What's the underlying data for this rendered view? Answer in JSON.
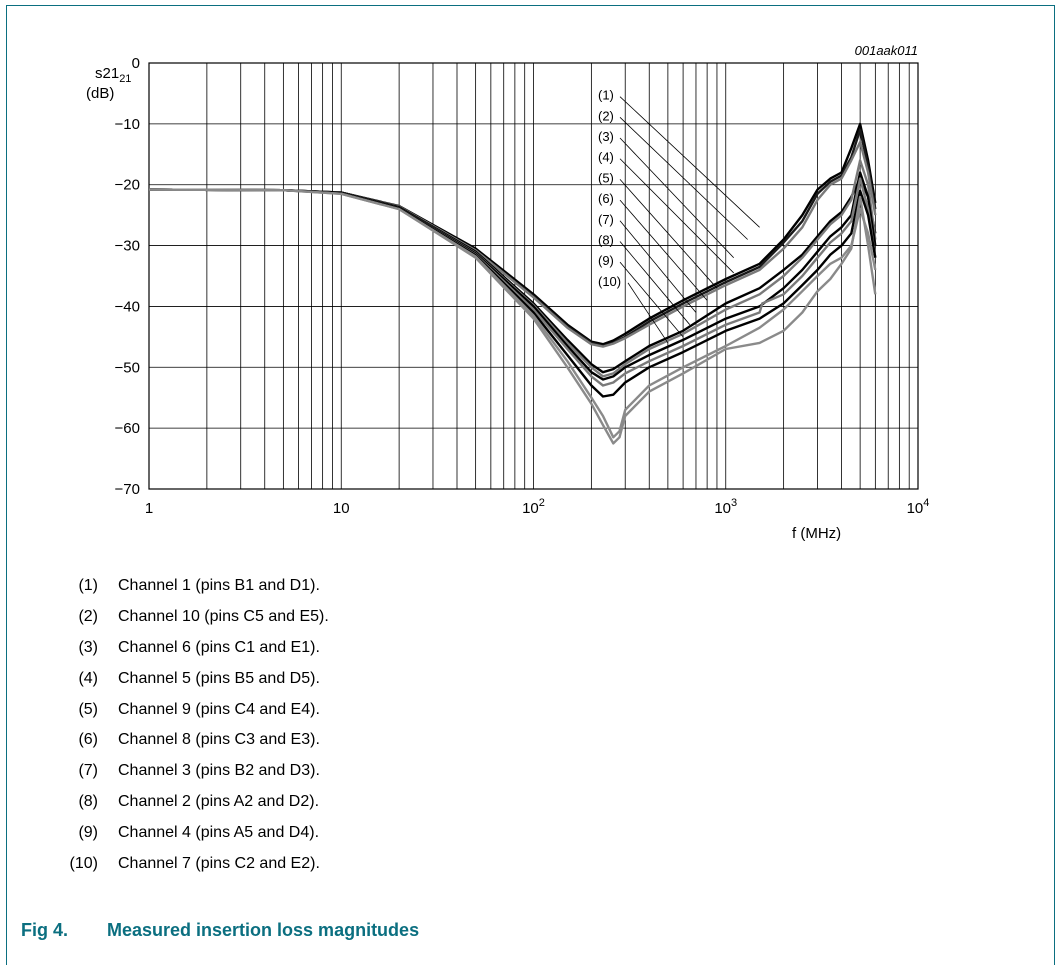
{
  "chart_data": {
    "type": "line",
    "id_label": "001aak011",
    "ylabel": "s21",
    "ylabel_unit": "(dB)",
    "xlabel": "f (MHz)",
    "xscale": "log",
    "xlim": [
      1,
      10000
    ],
    "ylim": [
      -70,
      0
    ],
    "grid": true,
    "x_ticks": [
      {
        "value": 1,
        "base": "1",
        "exp": ""
      },
      {
        "value": 10,
        "base": "10",
        "exp": ""
      },
      {
        "value": 100,
        "base": "10",
        "exp": "2"
      },
      {
        "value": 1000,
        "base": "10",
        "exp": "3"
      },
      {
        "value": 10000,
        "base": "10",
        "exp": "4"
      }
    ],
    "y_ticks": [
      {
        "value": 0,
        "label": "0"
      },
      {
        "value": -10,
        "label": "−10"
      },
      {
        "value": -20,
        "label": "−20"
      },
      {
        "value": -30,
        "label": "−30"
      },
      {
        "value": -40,
        "label": "−40"
      },
      {
        "value": -50,
        "label": "−50"
      },
      {
        "value": -60,
        "label": "−60"
      },
      {
        "value": -70,
        "label": "−70"
      }
    ],
    "series": [
      {
        "name": "(1)",
        "color": "#000000",
        "points": [
          [
            1,
            -20.8
          ],
          [
            5,
            -20.9
          ],
          [
            10,
            -21.3
          ],
          [
            20,
            -23.5
          ],
          [
            50,
            -30.5
          ],
          [
            100,
            -38
          ],
          [
            150,
            -43
          ],
          [
            200,
            -45.8
          ],
          [
            230,
            -46.2
          ],
          [
            260,
            -45.6
          ],
          [
            300,
            -44.5
          ],
          [
            400,
            -42
          ],
          [
            600,
            -39
          ],
          [
            1000,
            -35.5
          ],
          [
            1500,
            -33
          ],
          [
            2000,
            -29
          ],
          [
            2500,
            -25
          ],
          [
            3000,
            -20.8
          ],
          [
            3500,
            -19
          ],
          [
            4000,
            -18
          ],
          [
            4500,
            -14
          ],
          [
            5000,
            -10
          ],
          [
            5500,
            -16
          ],
          [
            6000,
            -23
          ]
        ],
        "label_y": -5.2,
        "target": [
          1500,
          -27
        ]
      },
      {
        "name": "(2)",
        "color": "#1a1a1a",
        "points": [
          [
            1,
            -20.8
          ],
          [
            5,
            -20.9
          ],
          [
            10,
            -21.3
          ],
          [
            20,
            -23.6
          ],
          [
            50,
            -30.8
          ],
          [
            100,
            -38.3
          ],
          [
            150,
            -43.3
          ],
          [
            200,
            -46
          ],
          [
            230,
            -46.5
          ],
          [
            260,
            -46
          ],
          [
            300,
            -45
          ],
          [
            400,
            -42.5
          ],
          [
            600,
            -39.5
          ],
          [
            1000,
            -36
          ],
          [
            1500,
            -33.5
          ],
          [
            2000,
            -29.5
          ],
          [
            2500,
            -26
          ],
          [
            3000,
            -21.5
          ],
          [
            3500,
            -19.5
          ],
          [
            4000,
            -18.5
          ],
          [
            4500,
            -15.5
          ],
          [
            5000,
            -11
          ],
          [
            5500,
            -17
          ],
          [
            6000,
            -24
          ]
        ],
        "label_y": -8.6,
        "target": [
          1300,
          -29
        ]
      },
      {
        "name": "(3)",
        "color": "#7a7a7a",
        "points": [
          [
            1,
            -20.8
          ],
          [
            5,
            -20.9
          ],
          [
            10,
            -21.3
          ],
          [
            20,
            -23.6
          ],
          [
            50,
            -30.8
          ],
          [
            100,
            -38.5
          ],
          [
            150,
            -43.5
          ],
          [
            200,
            -46.2
          ],
          [
            230,
            -46.6
          ],
          [
            260,
            -46.1
          ],
          [
            300,
            -45.2
          ],
          [
            400,
            -43
          ],
          [
            600,
            -40
          ],
          [
            1000,
            -36.5
          ],
          [
            1500,
            -34
          ],
          [
            2000,
            -30.5
          ],
          [
            2500,
            -27
          ],
          [
            3000,
            -22.5
          ],
          [
            3500,
            -20
          ],
          [
            4000,
            -19
          ],
          [
            4500,
            -16
          ],
          [
            5000,
            -13
          ],
          [
            5500,
            -18
          ],
          [
            6000,
            -25
          ]
        ],
        "label_y": -12.0,
        "target": [
          1100,
          -32
        ]
      },
      {
        "name": "(4)",
        "color": "#000000",
        "points": [
          [
            1,
            -20.8
          ],
          [
            5,
            -20.9
          ],
          [
            10,
            -21.3
          ],
          [
            20,
            -23.7
          ],
          [
            50,
            -31
          ],
          [
            100,
            -39.5
          ],
          [
            150,
            -45.5
          ],
          [
            200,
            -49.5
          ],
          [
            230,
            -50.8
          ],
          [
            260,
            -50.3
          ],
          [
            300,
            -49
          ],
          [
            400,
            -46.5
          ],
          [
            600,
            -44
          ],
          [
            1000,
            -39.5
          ],
          [
            1500,
            -37
          ],
          [
            2000,
            -34
          ],
          [
            2500,
            -31.5
          ],
          [
            3000,
            -28.5
          ],
          [
            3500,
            -26
          ],
          [
            4000,
            -24.5
          ],
          [
            4500,
            -22
          ],
          [
            5000,
            -19
          ],
          [
            5500,
            -22
          ],
          [
            6000,
            -28
          ]
        ],
        "label_y": -15.4,
        "target": [
          1100,
          -34.5
        ]
      },
      {
        "name": "(5)",
        "color": "#7a7a7a",
        "points": [
          [
            1,
            -20.8
          ],
          [
            5,
            -20.9
          ],
          [
            10,
            -21.4
          ],
          [
            20,
            -23.8
          ],
          [
            50,
            -31.2
          ],
          [
            100,
            -39.8
          ],
          [
            150,
            -46
          ],
          [
            200,
            -50
          ],
          [
            230,
            -51.5
          ],
          [
            260,
            -51
          ],
          [
            300,
            -49.5
          ],
          [
            400,
            -47
          ],
          [
            600,
            -44.5
          ],
          [
            1000,
            -40.5
          ],
          [
            1500,
            -38
          ],
          [
            2000,
            -35
          ],
          [
            2500,
            -32
          ],
          [
            3000,
            -29
          ],
          [
            3500,
            -26.5
          ],
          [
            4000,
            -25
          ],
          [
            4500,
            -22.5
          ],
          [
            5000,
            -16
          ],
          [
            5500,
            -20
          ],
          [
            6000,
            -29
          ]
        ],
        "label_y": -18.8,
        "target": [
          900,
          -37
        ]
      },
      {
        "name": "(6)",
        "color": "#000000",
        "points": [
          [
            1,
            -20.8
          ],
          [
            5,
            -20.9
          ],
          [
            10,
            -21.4
          ],
          [
            20,
            -23.8
          ],
          [
            50,
            -31.3
          ],
          [
            100,
            -40
          ],
          [
            150,
            -46.5
          ],
          [
            200,
            -50.8
          ],
          [
            230,
            -52
          ],
          [
            260,
            -51.5
          ],
          [
            300,
            -50
          ],
          [
            400,
            -48
          ],
          [
            600,
            -45.5
          ],
          [
            1000,
            -42
          ],
          [
            1500,
            -40
          ],
          [
            2000,
            -37
          ],
          [
            2500,
            -34
          ],
          [
            3000,
            -31
          ],
          [
            3500,
            -28.5
          ],
          [
            4000,
            -27
          ],
          [
            4500,
            -25
          ],
          [
            5000,
            -18
          ],
          [
            5500,
            -22
          ],
          [
            6000,
            -30
          ]
        ],
        "label_y": -22.2,
        "target": [
          800,
          -39
        ]
      },
      {
        "name": "(7)",
        "color": "#7a7a7a",
        "points": [
          [
            1,
            -20.8
          ],
          [
            5,
            -20.9
          ],
          [
            10,
            -21.4
          ],
          [
            20,
            -23.9
          ],
          [
            50,
            -31.5
          ],
          [
            100,
            -40.5
          ],
          [
            150,
            -47
          ],
          [
            200,
            -51.5
          ],
          [
            230,
            -53
          ],
          [
            260,
            -52.5
          ],
          [
            300,
            -51
          ],
          [
            400,
            -49
          ],
          [
            600,
            -46.5
          ],
          [
            1000,
            -43
          ],
          [
            1500,
            -41
          ],
          [
            1550,
            -39.5
          ],
          [
            2000,
            -38
          ],
          [
            2500,
            -35
          ],
          [
            3000,
            -32
          ],
          [
            3500,
            -29.5
          ],
          [
            4000,
            -28
          ],
          [
            4500,
            -26
          ],
          [
            5000,
            -19
          ],
          [
            5500,
            -24
          ],
          [
            6000,
            -32
          ]
        ],
        "label_y": -25.6,
        "target": [
          700,
          -41
        ]
      },
      {
        "name": "(8)",
        "color": "#000000",
        "points": [
          [
            1,
            -20.8
          ],
          [
            5,
            -20.9
          ],
          [
            10,
            -21.4
          ],
          [
            20,
            -23.9
          ],
          [
            50,
            -31.6
          ],
          [
            100,
            -41
          ],
          [
            150,
            -48
          ],
          [
            200,
            -53
          ],
          [
            230,
            -54.8
          ],
          [
            260,
            -54.5
          ],
          [
            300,
            -52.5
          ],
          [
            400,
            -50
          ],
          [
            600,
            -47.5
          ],
          [
            1000,
            -44
          ],
          [
            1500,
            -42
          ],
          [
            2000,
            -39.5
          ],
          [
            2500,
            -36.5
          ],
          [
            3000,
            -34
          ],
          [
            3500,
            -31.5
          ],
          [
            4000,
            -30
          ],
          [
            4500,
            -28
          ],
          [
            5000,
            -21
          ],
          [
            5500,
            -25
          ],
          [
            6000,
            -32
          ]
        ],
        "label_y": -29.0,
        "target": [
          650,
          -43
        ]
      },
      {
        "name": "(9)",
        "color": "#8a8a8a",
        "points": [
          [
            1,
            -20.8
          ],
          [
            5,
            -20.9
          ],
          [
            10,
            -21.5
          ],
          [
            20,
            -24
          ],
          [
            50,
            -31.8
          ],
          [
            100,
            -41.5
          ],
          [
            150,
            -49
          ],
          [
            200,
            -55
          ],
          [
            230,
            -58
          ],
          [
            260,
            -61.5
          ],
          [
            280,
            -60.5
          ],
          [
            300,
            -57
          ],
          [
            400,
            -53
          ],
          [
            600,
            -50
          ],
          [
            1000,
            -46.5
          ],
          [
            1500,
            -43.5
          ],
          [
            2000,
            -40.5
          ],
          [
            2500,
            -37.5
          ],
          [
            3000,
            -35
          ],
          [
            3500,
            -33
          ],
          [
            4000,
            -32
          ],
          [
            4500,
            -30
          ],
          [
            5000,
            -24
          ],
          [
            5500,
            -28
          ],
          [
            6000,
            -34
          ]
        ],
        "label_y": -32.4,
        "target": [
          600,
          -45
        ]
      },
      {
        "name": "(10)",
        "color": "#8a8a8a",
        "points": [
          [
            1,
            -20.8
          ],
          [
            5,
            -20.9
          ],
          [
            10,
            -21.5
          ],
          [
            20,
            -24
          ],
          [
            50,
            -32
          ],
          [
            100,
            -42
          ],
          [
            150,
            -50
          ],
          [
            200,
            -56
          ],
          [
            230,
            -59.5
          ],
          [
            260,
            -62.5
          ],
          [
            280,
            -61.5
          ],
          [
            300,
            -58
          ],
          [
            400,
            -54
          ],
          [
            600,
            -51
          ],
          [
            1000,
            -47
          ],
          [
            1500,
            -46
          ],
          [
            2000,
            -44
          ],
          [
            2500,
            -41
          ],
          [
            3000,
            -37.5
          ],
          [
            3500,
            -35.5
          ],
          [
            4000,
            -33
          ],
          [
            4500,
            -30.5
          ],
          [
            5000,
            -22
          ],
          [
            5500,
            -30
          ],
          [
            6000,
            -38
          ]
        ],
        "label_y": -35.8,
        "target": [
          500,
          -46
        ]
      }
    ]
  },
  "legend": [
    {
      "num": "(1)",
      "text": "Channel 1 (pins B1 and D1)."
    },
    {
      "num": "(2)",
      "text": "Channel 10 (pins C5 and E5)."
    },
    {
      "num": "(3)",
      "text": "Channel 6 (pins C1 and E1)."
    },
    {
      "num": "(4)",
      "text": "Channel 5 (pins B5 and D5)."
    },
    {
      "num": "(5)",
      "text": "Channel 9 (pins C4 and E4)."
    },
    {
      "num": "(6)",
      "text": "Channel 8 (pins C3 and E3)."
    },
    {
      "num": "(7)",
      "text": "Channel 3 (pins B2 and D3)."
    },
    {
      "num": "(8)",
      "text": "Channel 2 (pins A2 and D2)."
    },
    {
      "num": "(9)",
      "text": "Channel 4 (pins A5 and D4)."
    },
    {
      "num": "(10)",
      "text": "Channel 7 (pins C2 and E2)."
    }
  ],
  "caption": {
    "label": "Fig 4.",
    "title": "Measured insertion loss magnitudes"
  },
  "colors": {
    "frame": "#0b6f80",
    "caption": "#0b6f80"
  }
}
